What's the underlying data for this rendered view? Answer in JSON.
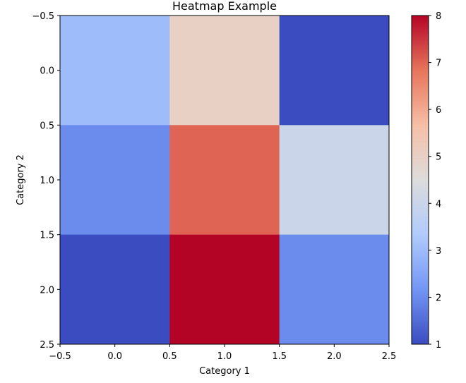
{
  "chart_data": {
    "type": "heatmap",
    "title": "Heatmap Example",
    "xlabel": "Category 1",
    "ylabel": "Category 2",
    "xlim": [
      -0.5,
      2.5
    ],
    "ylim": [
      2.5,
      -0.5
    ],
    "x_ticks": [
      "−0.5",
      "0.0",
      "0.5",
      "1.0",
      "1.5",
      "2.0",
      "2.5"
    ],
    "y_ticks": [
      "−0.5",
      "0.0",
      "0.5",
      "1.0",
      "1.5",
      "2.0",
      "2.5"
    ],
    "values": [
      [
        3,
        5,
        1
      ],
      [
        2,
        7,
        4
      ],
      [
        1,
        8,
        2
      ]
    ],
    "colormap": "coolwarm",
    "colormap_stops": [
      "#3b4cc0",
      "#7396f5",
      "#b0cbfc",
      "#dddcdc",
      "#f6bfa6",
      "#e7745b",
      "#b40426"
    ],
    "colorbar": {
      "range": [
        1,
        8
      ],
      "ticks": [
        "1",
        "2",
        "3",
        "4",
        "5",
        "6",
        "7",
        "8"
      ]
    },
    "grid": false
  }
}
